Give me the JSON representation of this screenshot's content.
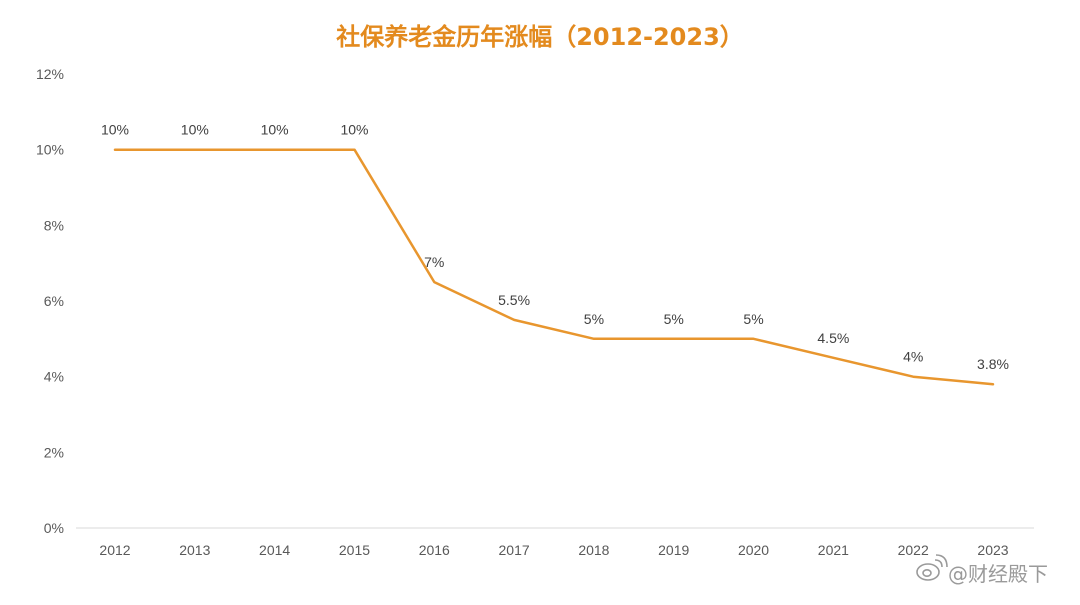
{
  "chart_data": {
    "type": "line",
    "title": "社保养老金历年涨幅（2012-2023）",
    "x": [
      "2012",
      "2013",
      "2014",
      "2015",
      "2016",
      "2017",
      "2018",
      "2019",
      "2020",
      "2021",
      "2022",
      "2023"
    ],
    "series": [
      {
        "values": [
          10,
          10,
          10,
          10,
          6.5,
          5.5,
          5,
          5,
          5,
          4.5,
          4,
          3.8
        ],
        "data_labels": [
          "10%",
          "10%",
          "10%",
          "10%",
          "7%",
          "5.5%",
          "5%",
          "5%",
          "5%",
          "4.5%",
          "4%",
          "3.8%"
        ],
        "color": "#e8962e"
      }
    ],
    "ylim": [
      0,
      12
    ],
    "yticks": [
      0,
      2,
      4,
      6,
      8,
      10,
      12
    ],
    "ytick_labels": [
      "0%",
      "2%",
      "4%",
      "6%",
      "8%",
      "10%",
      "12%"
    ],
    "xlabel": "",
    "ylabel": "",
    "grid": false,
    "legend": "none"
  },
  "colors": {
    "title": "#e38a1e",
    "line": "#e8962e",
    "axis": "#d9d9d9",
    "tick_text": "#595959",
    "watermark": "#9a9a9a"
  },
  "watermark": {
    "text": "@财经殿下",
    "icon": "weibo-icon"
  }
}
